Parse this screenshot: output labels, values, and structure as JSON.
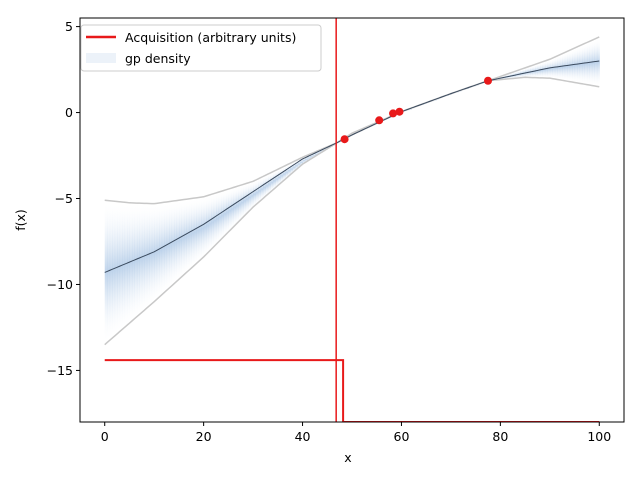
{
  "chart_data": {
    "type": "line",
    "xlabel": "x",
    "ylabel": "f(x)",
    "xlim": [
      -5,
      105
    ],
    "ylim": [
      -18,
      5.5
    ],
    "xticks": [
      0,
      20,
      40,
      60,
      80,
      100
    ],
    "yticks": [
      5,
      0,
      -5,
      -10,
      -15
    ],
    "ytick_labels": [
      "5",
      "0",
      "−5",
      "−10",
      "−15"
    ],
    "grid": false,
    "legend_position": "top-left",
    "legend": [
      {
        "label": "Acquisition (arbitrary units)",
        "color": "#e8191a",
        "kind": "line"
      },
      {
        "label": "gp density",
        "color": "#c8d9ee",
        "kind": "patch"
      }
    ],
    "gp_mean": {
      "x": [
        0,
        10,
        20,
        30,
        40,
        47,
        50,
        60,
        70,
        77.5,
        90,
        100
      ],
      "y": [
        -9.3,
        -8.1,
        -6.5,
        -4.6,
        -2.7,
        -1.75,
        -1.3,
        0.05,
        1.1,
        1.85,
        2.6,
        3.0
      ]
    },
    "gp_upper": {
      "x": [
        0,
        5,
        10,
        20,
        30,
        40,
        47,
        50,
        60,
        70,
        77.5,
        90,
        100
      ],
      "y": [
        -5.1,
        -5.25,
        -5.3,
        -4.9,
        -4.0,
        -2.6,
        -1.75,
        -1.2,
        0.05,
        1.1,
        1.85,
        3.1,
        4.4
      ]
    },
    "gp_lower": {
      "x": [
        0,
        10,
        20,
        30,
        40,
        47,
        50,
        60,
        70,
        77.5,
        85,
        90,
        100
      ],
      "y": [
        -13.5,
        -11.0,
        -8.4,
        -5.5,
        -3.0,
        -1.75,
        -1.3,
        0.05,
        1.1,
        1.85,
        2.05,
        2.0,
        1.5
      ]
    },
    "observations": {
      "x": [
        48.5,
        55.5,
        58.3,
        59.6,
        77.5
      ],
      "y": [
        -1.55,
        -0.45,
        -0.05,
        0.05,
        1.85
      ]
    },
    "acquisition": {
      "x": [
        0,
        48.2,
        48.2,
        48.4,
        48.4,
        100
      ],
      "y": [
        -14.4,
        -14.4,
        -18.0,
        -18.0,
        -18.0,
        -18.0
      ]
    },
    "selected_x": 46.8,
    "colors": {
      "mean": "#3a4a5e",
      "bound": "#c8c8c8",
      "density": "#b8cfe9",
      "acquisition": "#e8191a",
      "observation": "#e8191a"
    }
  }
}
